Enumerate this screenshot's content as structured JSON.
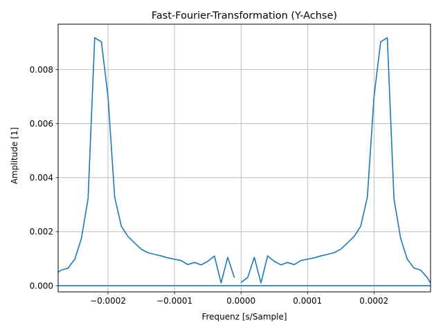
{
  "chart_data": {
    "type": "line",
    "title": "Fast-Fourier-Transformation (Y-Achse)",
    "xlabel": "Frequenz [s/Sample]",
    "ylabel": "Amplitude [1]",
    "xlim": [
      -0.000275,
      0.000285
    ],
    "ylim": [
      -0.00023,
      0.00968
    ],
    "grid": true,
    "x_ticks": [
      -0.0002,
      -0.0001,
      0.0,
      0.0001,
      0.0002
    ],
    "x_tick_labels": [
      "−0.0002",
      "−0.0001",
      "0.0000",
      "0.0001",
      "0.0002"
    ],
    "y_ticks": [
      0.0,
      0.002,
      0.004,
      0.006,
      0.008
    ],
    "y_tick_labels": [
      "0.000",
      "0.002",
      "0.004",
      "0.006",
      "0.008"
    ],
    "line_color": "#1f77b4",
    "series": [
      {
        "x": [
          -0.000275,
          -0.00027,
          -0.00026,
          -0.00025,
          -0.00024,
          -0.00023,
          -0.00022,
          -0.00021,
          -0.0002,
          -0.00019,
          -0.00018,
          -0.00017,
          -0.00016,
          -0.00015,
          -0.00014,
          -0.00013,
          -0.00012,
          -0.00011,
          -0.0001,
          -9e-05,
          -8e-05,
          -7e-05,
          -6e-05,
          -5e-05,
          -4e-05,
          -3e-05,
          -2e-05,
          -1e-05
        ],
        "y": [
          0.0005,
          0.00058,
          0.00065,
          0.00098,
          0.00175,
          0.00322,
          0.00918,
          0.00903,
          0.007,
          0.00328,
          0.0022,
          0.00182,
          0.00158,
          0.00135,
          0.00122,
          0.00116,
          0.0011,
          0.00103,
          0.00098,
          0.00093,
          0.00078,
          0.00086,
          0.00077,
          0.0009,
          0.0011,
          0.0001,
          0.00105,
          0.0003
        ]
      },
      {
        "x": [
          0.0,
          1e-05,
          2e-05,
          3e-05,
          4e-05,
          5e-05,
          6e-05,
          7e-05,
          8e-05,
          9e-05,
          0.0001,
          0.00011,
          0.00012,
          0.00013,
          0.00014,
          0.00015,
          0.00016,
          0.00017,
          0.00018,
          0.00019,
          0.0002,
          0.00021,
          0.00022,
          0.00023,
          0.00024,
          0.00025,
          0.00026,
          0.00027,
          0.00028,
          0.000285
        ],
        "y": [
          0.00012,
          0.0003,
          0.00105,
          0.0001,
          0.0011,
          0.0009,
          0.00077,
          0.00086,
          0.00078,
          0.00093,
          0.00098,
          0.00103,
          0.0011,
          0.00116,
          0.00122,
          0.00135,
          0.00158,
          0.00182,
          0.0022,
          0.00328,
          0.007,
          0.00903,
          0.00918,
          0.00322,
          0.00175,
          0.00098,
          0.00065,
          0.00058,
          0.0003,
          0.0001
        ]
      },
      {
        "x": [
          -0.000275,
          0.000285
        ],
        "y": [
          0.0,
          0.0
        ]
      }
    ]
  }
}
